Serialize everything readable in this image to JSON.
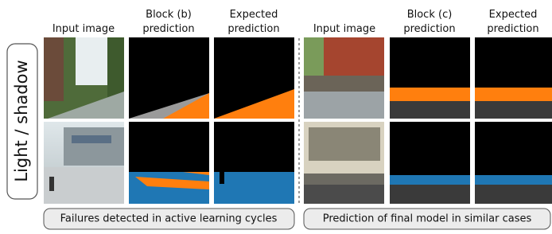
{
  "row_label": "Light / shadow",
  "left_panel": {
    "headers": [
      [
        "Input image"
      ],
      [
        "Block (b)",
        "prediction"
      ],
      [
        "Expected",
        "prediction"
      ]
    ],
    "caption": "Failures detected in active learning cycles"
  },
  "right_panel": {
    "headers": [
      [
        "Input image"
      ],
      [
        "Block (c)",
        "prediction"
      ],
      [
        "Expected",
        "prediction"
      ]
    ],
    "caption": "Prediction of final model in similar cases"
  }
}
